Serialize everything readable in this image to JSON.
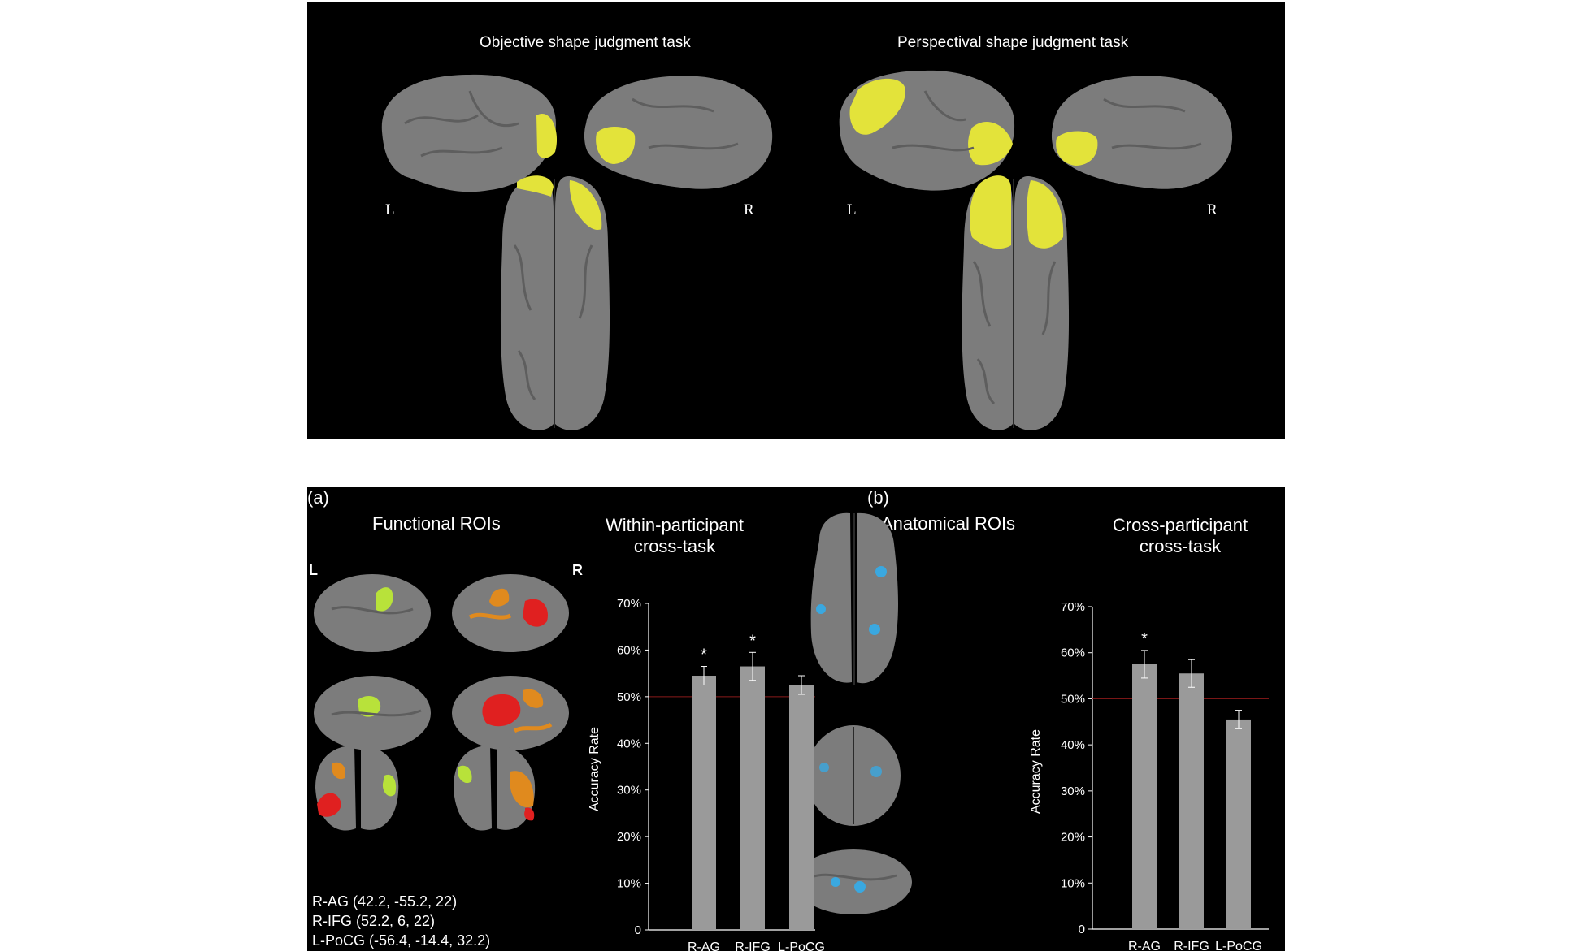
{
  "top": {
    "left_title": "Objective shape judgment task",
    "right_title": "Perspectival shape judgment task",
    "left_L": "L",
    "left_R": "R",
    "right_L": "L",
    "right_R": "R"
  },
  "bottom": {
    "panel_a": "(a)",
    "panel_b": "(b)",
    "functional_title": "Functional ROIs",
    "anatomical_title": "Anatomical ROIs",
    "L": "L",
    "R": "R",
    "roi_coords": [
      "R-AG (42.2, -55.2, 22)",
      "R-IFG (52.2, 6, 22)",
      "L-PoCG (-56.4, -14.4, 32.2)"
    ]
  },
  "colors": {
    "brain": "#7c7c7c",
    "yellow": "#e3e33a",
    "green": "#b8e23a",
    "orange": "#e08a1e",
    "red": "#e02020",
    "blue": "#3aa8e0",
    "bar": "#9a9a9a"
  },
  "chart_data": [
    {
      "type": "bar",
      "title": "Within-participant cross-task",
      "title_lines": [
        "Within-participant",
        "cross-task"
      ],
      "ylabel": "Accuracy Rate",
      "categories": [
        "R-AG",
        "R-IFG",
        "L-PoCG"
      ],
      "values": [
        0.545,
        0.565,
        0.525
      ],
      "errors": [
        0.02,
        0.03,
        0.02
      ],
      "significance": [
        "*",
        "*",
        ""
      ],
      "ylim": [
        0,
        0.7
      ],
      "yticks": [
        "0",
        "10%",
        "20%",
        "30%",
        "40%",
        "50%",
        "60%",
        "70%"
      ],
      "reference_line": 0.5
    },
    {
      "type": "bar",
      "title": "Cross-participant cross-task",
      "title_lines": [
        "Cross-participant",
        "cross-task"
      ],
      "ylabel": "Accuracy Rate",
      "categories": [
        "R-AG",
        "R-IFG",
        "L-PoCG"
      ],
      "values": [
        0.575,
        0.555,
        0.455
      ],
      "errors": [
        0.03,
        0.03,
        0.02
      ],
      "significance": [
        "*",
        "",
        ""
      ],
      "ylim": [
        0,
        0.7
      ],
      "yticks": [
        "0",
        "10%",
        "20%",
        "30%",
        "40%",
        "50%",
        "60%",
        "70%"
      ],
      "reference_line": 0.5
    }
  ]
}
